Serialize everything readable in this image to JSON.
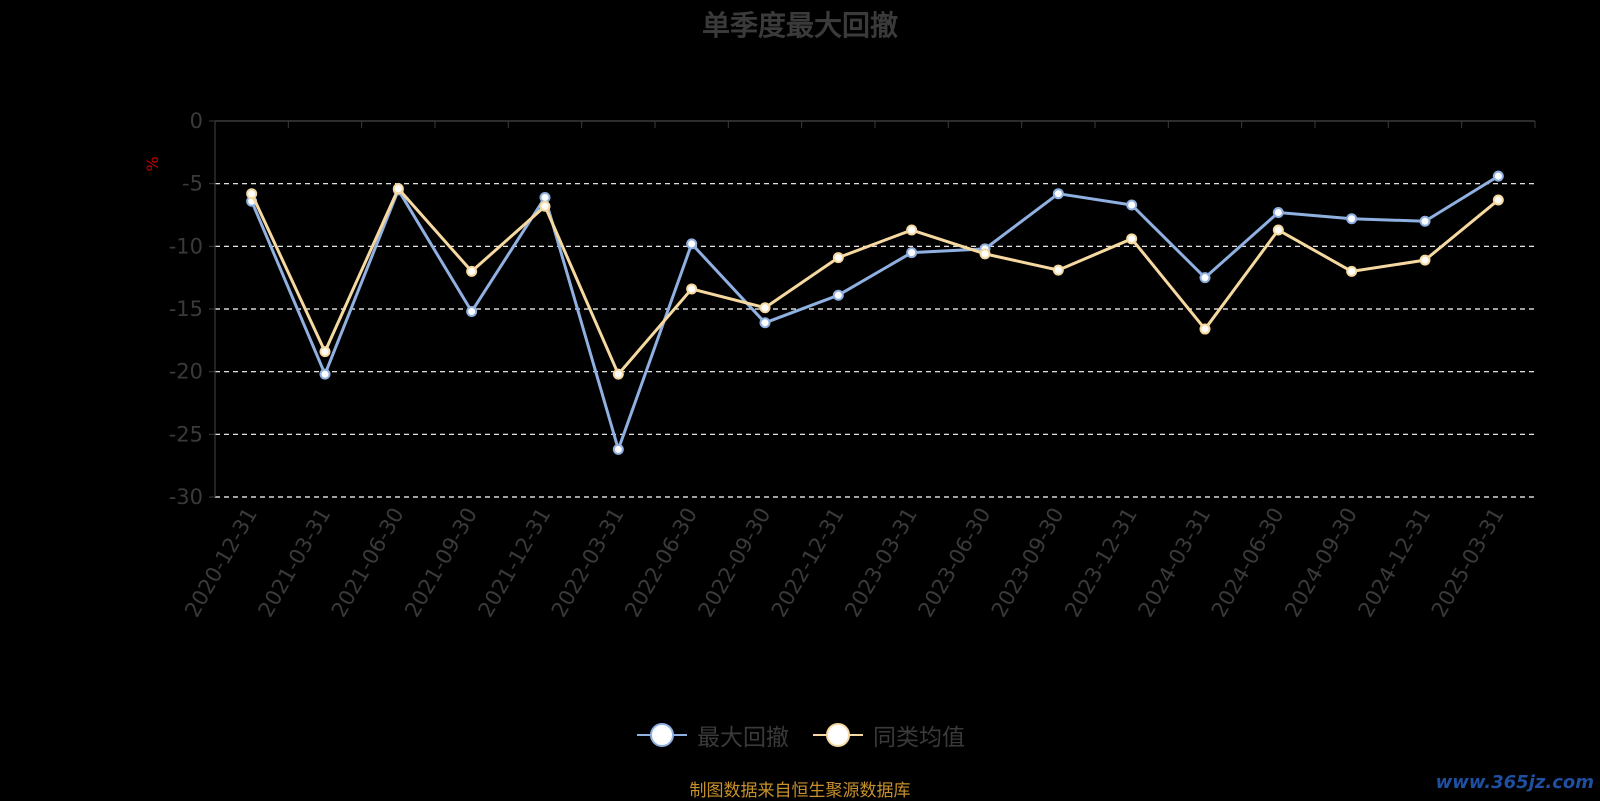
{
  "title": "单季度最大回撤",
  "source_note": "制图数据来自恒生聚源数据库",
  "watermark": "www.365jz.com",
  "legend": [
    {
      "label": "最大回撤",
      "color": "#8fb0e0"
    },
    {
      "label": "同类均值",
      "color": "#f6d9a0"
    }
  ],
  "chart_data": {
    "type": "line",
    "title": "单季度最大回撤",
    "ylabel": "%",
    "ylim": [
      -30,
      0
    ],
    "yticks": [
      0,
      -5,
      -10,
      -15,
      -20,
      -25,
      -30
    ],
    "grid": true,
    "legend_position": "bottom",
    "categories": [
      "2020-12-31",
      "2021-03-31",
      "2021-06-30",
      "2021-09-30",
      "2021-12-31",
      "2022-03-31",
      "2022-06-30",
      "2022-09-30",
      "2022-12-31",
      "2023-03-31",
      "2023-06-30",
      "2023-09-30",
      "2023-12-31",
      "2024-03-31",
      "2024-06-30",
      "2024-09-30",
      "2024-12-31",
      "2025-03-31"
    ],
    "series": [
      {
        "name": "最大回撤",
        "color": "#8fb0e0",
        "values": [
          -6.4,
          -20.2,
          -5.5,
          -15.2,
          -6.1,
          -26.2,
          -9.8,
          -16.1,
          -13.9,
          -10.5,
          -10.2,
          -5.8,
          -6.7,
          -12.5,
          -7.3,
          -7.8,
          -8.0,
          -4.4
        ]
      },
      {
        "name": "同类均值",
        "color": "#f6d9a0",
        "values": [
          -5.8,
          -18.4,
          -5.4,
          -12.0,
          -6.8,
          -20.2,
          -13.4,
          -14.9,
          -10.9,
          -8.7,
          -10.6,
          -11.9,
          -9.4,
          -16.6,
          -8.7,
          -12.0,
          -11.1,
          -6.3
        ]
      }
    ]
  }
}
